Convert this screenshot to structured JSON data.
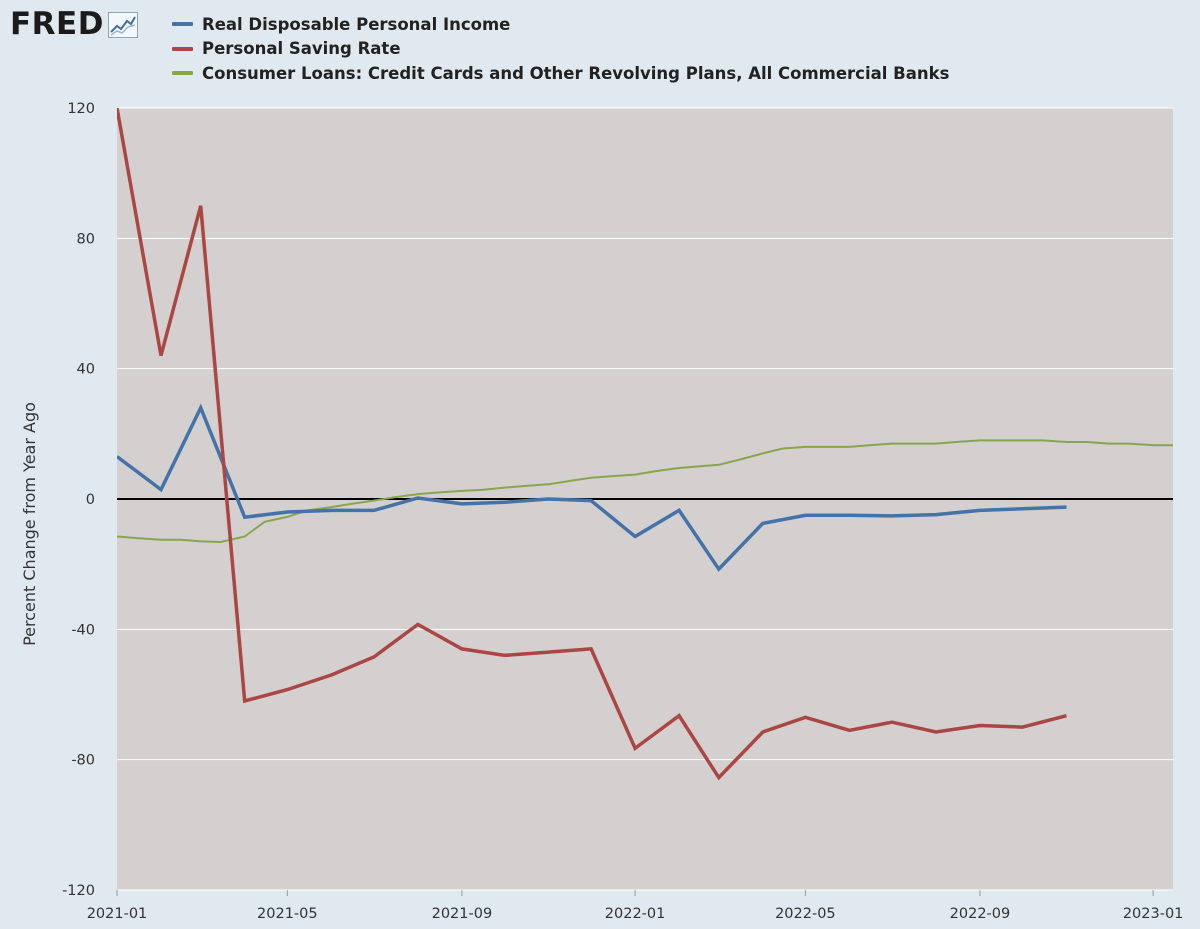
{
  "header": {
    "logo_text": "FRED",
    "logo_icon": "line-chart-icon"
  },
  "colors": {
    "page_background": "#e1e9f0",
    "plot_background": "#d3d0cf",
    "gridline": "#ffffff",
    "zero_line": "#000000"
  },
  "chart_data": {
    "type": "line",
    "title": "",
    "xlabel": "",
    "ylabel": "Percent Change from Year Ago",
    "ylim": [
      -120,
      120
    ],
    "yticks": [
      120,
      80,
      40,
      0,
      -40,
      -80,
      -120
    ],
    "ytick_labels": [
      "120",
      "80",
      "40",
      "0",
      "-40",
      "-80",
      "-120"
    ],
    "xlim": [
      "2021-01-01",
      "2023-01-15"
    ],
    "xticks": [
      "2021-01",
      "2021-05",
      "2021-09",
      "2022-01",
      "2022-05",
      "2022-09",
      "2023-01"
    ],
    "grid": true,
    "zero_line": true,
    "legend_position": "top",
    "series": [
      {
        "name": "Real Disposable Personal Income",
        "color": "#4572a7",
        "points": [
          [
            "2021-01-01",
            13.0
          ],
          [
            "2021-02-01",
            2.9
          ],
          [
            "2021-03-01",
            28.0
          ],
          [
            "2021-04-01",
            -5.6
          ],
          [
            "2021-05-01",
            -4.0
          ],
          [
            "2021-06-01",
            -3.5
          ],
          [
            "2021-07-01",
            -3.5
          ],
          [
            "2021-08-01",
            0.3
          ],
          [
            "2021-09-01",
            -1.5
          ],
          [
            "2021-10-01",
            -1.0
          ],
          [
            "2021-11-01",
            0.0
          ],
          [
            "2021-12-01",
            -0.5
          ],
          [
            "2022-01-01",
            -11.5
          ],
          [
            "2022-02-01",
            -3.5
          ],
          [
            "2022-03-01",
            -21.5
          ],
          [
            "2022-04-01",
            -7.5
          ],
          [
            "2022-05-01",
            -5.0
          ],
          [
            "2022-06-01",
            -5.0
          ],
          [
            "2022-07-01",
            -5.2
          ],
          [
            "2022-08-01",
            -4.8
          ],
          [
            "2022-09-01",
            -3.5
          ],
          [
            "2022-10-01",
            -3.0
          ],
          [
            "2022-11-01",
            -2.5
          ]
        ]
      },
      {
        "name": "Personal Saving Rate",
        "color": "#aa4643",
        "points": [
          [
            "2021-01-01",
            120.0
          ],
          [
            "2021-02-01",
            44.0
          ],
          [
            "2021-03-01",
            90.0
          ],
          [
            "2021-04-01",
            -62.0
          ],
          [
            "2021-05-01",
            -58.5
          ],
          [
            "2021-06-01",
            -54.0
          ],
          [
            "2021-07-01",
            -48.5
          ],
          [
            "2021-08-01",
            -38.5
          ],
          [
            "2021-09-01",
            -46.0
          ],
          [
            "2021-10-01",
            -48.0
          ],
          [
            "2021-11-01",
            -47.0
          ],
          [
            "2021-12-01",
            -46.0
          ],
          [
            "2022-01-01",
            -76.5
          ],
          [
            "2022-02-01",
            -66.5
          ],
          [
            "2022-03-01",
            -85.5
          ],
          [
            "2022-04-01",
            -71.5
          ],
          [
            "2022-05-01",
            -67.0
          ],
          [
            "2022-06-01",
            -71.0
          ],
          [
            "2022-07-01",
            -68.5
          ],
          [
            "2022-08-01",
            -71.5
          ],
          [
            "2022-09-01",
            -69.5
          ],
          [
            "2022-10-01",
            -70.0
          ],
          [
            "2022-11-01",
            -66.5
          ]
        ]
      },
      {
        "name": "Consumer Loans: Credit Cards and Other Revolving Plans, All Commercial Banks",
        "color": "#89a54e",
        "points": [
          [
            "2021-01-01",
            -11.5
          ],
          [
            "2021-01-15",
            -12.0
          ],
          [
            "2021-02-01",
            -12.5
          ],
          [
            "2021-02-15",
            -12.5
          ],
          [
            "2021-03-01",
            -13.0
          ],
          [
            "2021-03-15",
            -13.2
          ],
          [
            "2021-04-01",
            -11.5
          ],
          [
            "2021-04-15",
            -7.0
          ],
          [
            "2021-05-01",
            -5.5
          ],
          [
            "2021-05-15",
            -3.5
          ],
          [
            "2021-06-01",
            -2.5
          ],
          [
            "2021-06-15",
            -1.5
          ],
          [
            "2021-07-01",
            -0.5
          ],
          [
            "2021-07-15",
            0.5
          ],
          [
            "2021-08-01",
            1.5
          ],
          [
            "2021-08-15",
            2.0
          ],
          [
            "2021-09-01",
            2.5
          ],
          [
            "2021-09-15",
            2.8
          ],
          [
            "2021-10-01",
            3.5
          ],
          [
            "2021-10-15",
            4.0
          ],
          [
            "2021-11-01",
            4.5
          ],
          [
            "2021-11-15",
            5.5
          ],
          [
            "2021-12-01",
            6.5
          ],
          [
            "2021-12-15",
            7.0
          ],
          [
            "2022-01-01",
            7.5
          ],
          [
            "2022-01-15",
            8.5
          ],
          [
            "2022-02-01",
            9.5
          ],
          [
            "2022-02-15",
            10.0
          ],
          [
            "2022-03-01",
            10.5
          ],
          [
            "2022-03-15",
            12.0
          ],
          [
            "2022-04-01",
            14.0
          ],
          [
            "2022-04-15",
            15.5
          ],
          [
            "2022-05-01",
            16.0
          ],
          [
            "2022-05-15",
            16.0
          ],
          [
            "2022-06-01",
            16.0
          ],
          [
            "2022-06-15",
            16.5
          ],
          [
            "2022-07-01",
            17.0
          ],
          [
            "2022-07-15",
            17.0
          ],
          [
            "2022-08-01",
            17.0
          ],
          [
            "2022-08-15",
            17.5
          ],
          [
            "2022-09-01",
            18.0
          ],
          [
            "2022-09-15",
            18.0
          ],
          [
            "2022-10-01",
            18.0
          ],
          [
            "2022-10-15",
            18.0
          ],
          [
            "2022-11-01",
            17.5
          ],
          [
            "2022-11-15",
            17.5
          ],
          [
            "2022-12-01",
            17.0
          ],
          [
            "2022-12-15",
            17.0
          ],
          [
            "2023-01-01",
            16.5
          ],
          [
            "2023-01-15",
            16.5
          ]
        ]
      }
    ]
  }
}
